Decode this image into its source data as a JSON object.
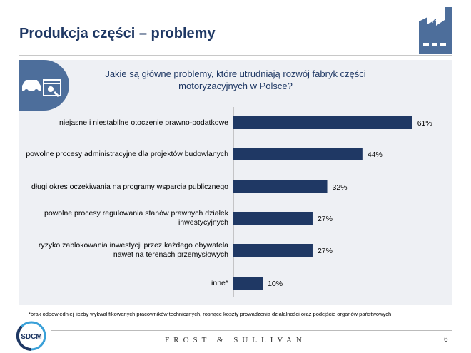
{
  "header": {
    "title": "Produkcja części – problemy"
  },
  "footer": {
    "note": "*brak odpowiedniej liczby wykwalifikowanych pracowników technicznych, rosnące koszty prowadzenia działalności oraz podejście organów państwowych",
    "brand": "FROST & SULLIVAN",
    "logo_text": "SDCM",
    "page_number": "6"
  },
  "colors": {
    "title": "#1f3864",
    "bar": "#1f3864",
    "panel": "#eef0f4",
    "badge": "#4d6e9b"
  },
  "chart_data": {
    "type": "bar",
    "orientation": "horizontal",
    "title": "Jakie są główne problemy, które utrudniają rozwój fabryk części motoryzacyjnych w Polsce?",
    "categories": [
      "niejasne i niestabilne otoczenie prawno-podatkowe",
      "powolne procesy administracyjne dla projektów budowlanych",
      "długi okres oczekiwania na programy wsparcia publicznego",
      "powolne procesy regulowania stanów prawnych działek inwestycyjnych",
      "ryzyko zablokowania inwestycji przez każdego obywatela nawet na terenach przemysłowych",
      "inne*"
    ],
    "values": [
      61,
      44,
      32,
      27,
      27,
      10
    ],
    "value_labels": [
      "61%",
      "44%",
      "32%",
      "27%",
      "27%",
      "10%"
    ],
    "unit": "%",
    "xlim": [
      0,
      70
    ],
    "grid": false
  }
}
